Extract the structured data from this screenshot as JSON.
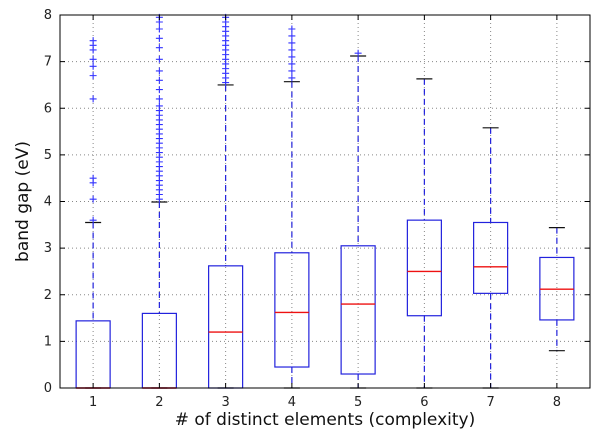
{
  "chart_data": {
    "type": "boxplot",
    "xlabel": "# of distinct elements (complexity)",
    "ylabel": "band gap (eV)",
    "ylim": [
      0,
      8
    ],
    "yticks": [
      0,
      1,
      2,
      3,
      4,
      5,
      6,
      7,
      8
    ],
    "grid": true,
    "colors": {
      "box": "#2222dd",
      "median": "#ee1111",
      "cap": "#111111",
      "outlier": "#3333ff",
      "grid": "#888888"
    },
    "categories": [
      "1",
      "2",
      "3",
      "4",
      "5",
      "6",
      "7",
      "8"
    ],
    "boxes": [
      {
        "category": "1",
        "whisker_low": 0.0,
        "q1": 0.0,
        "median": 0.0,
        "q3": 1.44,
        "whisker_high": 3.55,
        "outliers": [
          3.6,
          4.05,
          4.4,
          4.5,
          6.2,
          6.7,
          6.9,
          7.05,
          7.25,
          7.35,
          7.45
        ]
      },
      {
        "category": "2",
        "whisker_low": 0.0,
        "q1": 0.0,
        "median": 0.0,
        "q3": 1.6,
        "whisker_high": 3.99,
        "outliers": [
          4.05,
          4.15,
          4.25,
          4.35,
          4.45,
          4.55,
          4.65,
          4.75,
          4.85,
          4.95,
          5.05,
          5.15,
          5.25,
          5.35,
          5.45,
          5.55,
          5.65,
          5.75,
          5.85,
          5.95,
          6.05,
          6.2,
          6.4,
          6.6,
          6.8,
          7.05,
          7.3,
          7.5,
          7.7,
          7.85,
          7.95
        ]
      },
      {
        "category": "3",
        "whisker_low": 0.0,
        "q1": 0.0,
        "median": 1.2,
        "q3": 2.62,
        "whisker_high": 6.5,
        "outliers": [
          6.55,
          6.65,
          6.75,
          6.85,
          6.95,
          7.05,
          7.15,
          7.25,
          7.35,
          7.45,
          7.55,
          7.65,
          7.75,
          7.85,
          7.95
        ]
      },
      {
        "category": "4",
        "whisker_low": 0.0,
        "q1": 0.45,
        "median": 1.62,
        "q3": 2.9,
        "whisker_high": 6.57,
        "outliers": [
          6.65,
          6.8,
          6.95,
          7.1,
          7.25,
          7.4,
          7.55,
          7.7
        ]
      },
      {
        "category": "5",
        "whisker_low": 0.0,
        "q1": 0.3,
        "median": 1.8,
        "q3": 3.05,
        "whisker_high": 7.12,
        "outliers": [
          7.18
        ]
      },
      {
        "category": "6",
        "whisker_low": 0.0,
        "q1": 1.55,
        "median": 2.5,
        "q3": 3.6,
        "whisker_high": 6.63,
        "outliers": []
      },
      {
        "category": "7",
        "whisker_low": 0.0,
        "q1": 2.03,
        "median": 2.6,
        "q3": 3.55,
        "whisker_high": 5.58,
        "outliers": []
      },
      {
        "category": "8",
        "whisker_low": 0.8,
        "q1": 1.46,
        "median": 2.12,
        "q3": 2.8,
        "whisker_high": 3.44,
        "outliers": []
      }
    ]
  }
}
